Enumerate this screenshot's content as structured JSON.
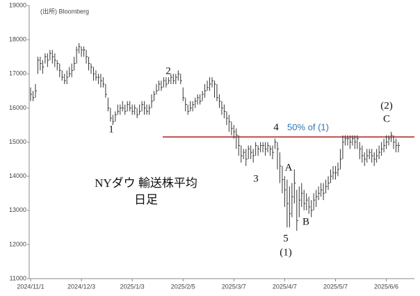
{
  "chart_data": {
    "type": "ohlc",
    "source": "(出所) Bloomberg",
    "categories": [
      "2024/11/1",
      null,
      null,
      null,
      null,
      null,
      null,
      null,
      null,
      null,
      null,
      null,
      null,
      null,
      null,
      null,
      null,
      null,
      null,
      null,
      null,
      "2024/12/3",
      null,
      null,
      null,
      null,
      null,
      null,
      null,
      null,
      null,
      null,
      null,
      null,
      null,
      null,
      null,
      null,
      null,
      null,
      null,
      null,
      "2025/1/3",
      null,
      null,
      null,
      null,
      null,
      null,
      null,
      null,
      null,
      null,
      null,
      null,
      null,
      null,
      null,
      null,
      null,
      null,
      null,
      null,
      "2025/2/5",
      null,
      null,
      null,
      null,
      null,
      null,
      null,
      null,
      null,
      null,
      null,
      null,
      null,
      null,
      null,
      null,
      null,
      null,
      null,
      null,
      "2025/3/7",
      null,
      null,
      null,
      null,
      null,
      null,
      null,
      null,
      null,
      null,
      null,
      null,
      null,
      null,
      null,
      null,
      null,
      null,
      null,
      null,
      "2025/4/7",
      null,
      null,
      null,
      null,
      null,
      null,
      null,
      null,
      null,
      null,
      null,
      null,
      null,
      null,
      null,
      null,
      null,
      null,
      null,
      null,
      "2025/5/7",
      null,
      null,
      null,
      null,
      null,
      null,
      null,
      null,
      null,
      null,
      null,
      null,
      null,
      null,
      null,
      null,
      null,
      null,
      null,
      null,
      "2025/6/6",
      null,
      null,
      null,
      null,
      null
    ],
    "high": [
      16600,
      16500,
      16700,
      17500,
      17500,
      17400,
      17600,
      17600,
      17700,
      17700,
      17600,
      17400,
      17300,
      17100,
      17000,
      17100,
      17200,
      17300,
      17500,
      17800,
      17900,
      17800,
      17800,
      17700,
      17500,
      17300,
      17200,
      17100,
      17000,
      17000,
      16900,
      16700,
      16300,
      16000,
      15800,
      15900,
      16100,
      16100,
      16200,
      16100,
      16200,
      16200,
      16100,
      16100,
      16000,
      16100,
      16200,
      16200,
      16100,
      16100,
      16400,
      16500,
      16700,
      16800,
      16800,
      16900,
      16900,
      16900,
      17000,
      17000,
      17000,
      17100,
      17000,
      16600,
      16300,
      16100,
      16200,
      16200,
      16300,
      16400,
      16400,
      16500,
      16700,
      16800,
      16900,
      16900,
      16800,
      16700,
      16400,
      16200,
      16100,
      15900,
      15800,
      15600,
      15500,
      15400,
      15200,
      14900,
      14800,
      14800,
      14900,
      14900,
      14800,
      15000,
      14900,
      15000,
      15000,
      15000,
      15000,
      14900,
      14900,
      15100,
      15000,
      14700,
      14300,
      14000,
      13900,
      13700,
      13800,
      14200,
      13600,
      13700,
      13800,
      13600,
      13500,
      13400,
      13300,
      13500,
      13600,
      13700,
      13800,
      13800,
      13900,
      14000,
      14200,
      14300,
      14300,
      14400,
      14800,
      15200,
      15200,
      15200,
      15200,
      15200,
      15200,
      15200,
      15000,
      14900,
      14700,
      14800,
      14800,
      14800,
      14700,
      14800,
      14900,
      15000,
      15100,
      15200,
      15200,
      15300,
      15200,
      15100,
      15000
    ],
    "low": [
      16200,
      16200,
      16300,
      17000,
      17100,
      17000,
      17300,
      17200,
      17400,
      17300,
      17200,
      17100,
      16900,
      16800,
      16700,
      16700,
      16900,
      16900,
      17100,
      17300,
      17600,
      17500,
      17500,
      17300,
      17100,
      17000,
      16800,
      16800,
      16700,
      16600,
      16600,
      16300,
      15900,
      15600,
      15500,
      15600,
      15800,
      15800,
      15900,
      15800,
      15900,
      15900,
      15800,
      15800,
      15700,
      15800,
      15900,
      15800,
      15800,
      15800,
      16000,
      16200,
      16400,
      16500,
      16500,
      16600,
      16600,
      16700,
      16700,
      16700,
      16700,
      16800,
      16700,
      16200,
      15900,
      15800,
      15900,
      15900,
      16000,
      16100,
      16100,
      16200,
      16300,
      16500,
      16500,
      16600,
      16300,
      16200,
      16000,
      15800,
      15700,
      15500,
      15300,
      15200,
      15100,
      14800,
      14600,
      14400,
      14500,
      14300,
      14500,
      14500,
      14400,
      14600,
      14600,
      14700,
      14700,
      14600,
      14700,
      14600,
      14500,
      14800,
      14200,
      13800,
      13500,
      13100,
      12500,
      12500,
      12800,
      13200,
      12400,
      12800,
      13100,
      13000,
      13000,
      12900,
      12800,
      13000,
      13100,
      13300,
      13400,
      13300,
      13500,
      13600,
      13800,
      13900,
      13900,
      14000,
      14200,
      14500,
      14900,
      14900,
      14800,
      14900,
      14800,
      14800,
      14500,
      14400,
      14300,
      14400,
      14500,
      14400,
      14300,
      14400,
      14500,
      14600,
      14700,
      14800,
      14900,
      15000,
      14800,
      14700,
      14700
    ],
    "close": [
      16400,
      16300,
      16500,
      17400,
      17300,
      17200,
      17500,
      17400,
      17600,
      17500,
      17400,
      17300,
      17100,
      16900,
      16800,
      16900,
      17000,
      17100,
      17300,
      17700,
      17800,
      17700,
      17700,
      17500,
      17300,
      17200,
      17000,
      16900,
      16900,
      16800,
      16700,
      16400,
      16000,
      15700,
      15600,
      15800,
      15900,
      16000,
      16000,
      15900,
      16100,
      16000,
      15900,
      16000,
      15800,
      15900,
      16100,
      16000,
      15900,
      16000,
      16200,
      16400,
      16500,
      16700,
      16600,
      16800,
      16700,
      16800,
      16900,
      16800,
      16900,
      17000,
      16800,
      16300,
      16100,
      15900,
      16000,
      16100,
      16200,
      16300,
      16200,
      16400,
      16500,
      16600,
      16700,
      16800,
      16700,
      16300,
      16200,
      16000,
      15900,
      15700,
      15600,
      15400,
      15300,
      15200,
      14900,
      14600,
      14700,
      14500,
      14800,
      14700,
      14600,
      14900,
      14800,
      14900,
      14900,
      14800,
      14900,
      14800,
      14700,
      15000,
      14800,
      14300,
      13900,
      13600,
      13200,
      12900,
      13400,
      13800,
      12700,
      13300,
      13500,
      13200,
      13300,
      13100,
      13000,
      13300,
      13400,
      13500,
      13600,
      13500,
      13700,
      13800,
      14000,
      14100,
      14100,
      14200,
      14500,
      15000,
      15100,
      15100,
      15000,
      15100,
      15000,
      15100,
      14800,
      14600,
      14500,
      14600,
      14700,
      14600,
      14500,
      14600,
      14700,
      14800,
      14900,
      15000,
      15100,
      15200,
      15000,
      14900,
      14900
    ],
    "color": "#333333",
    "reference_line": {
      "value": 15150,
      "color": "#c0504d"
    },
    "ylim": [
      11000,
      19000
    ],
    "yticks": [
      11000,
      12000,
      13000,
      14000,
      15000,
      16000,
      17000,
      18000,
      19000
    ],
    "annotations": [
      "1",
      "2",
      "3",
      "4",
      "50% of (1)",
      "A",
      "5",
      "(1)",
      "B",
      "(2)",
      "C",
      "NYダウ 輸送株平均",
      "日足"
    ]
  }
}
